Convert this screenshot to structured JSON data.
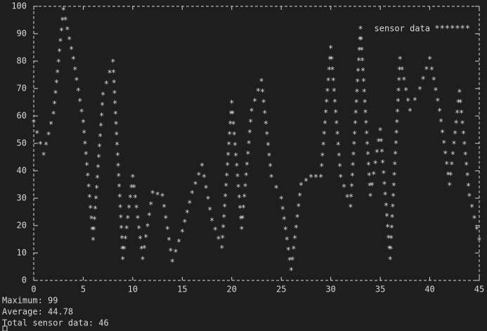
{
  "chart_data": {
    "type": "line",
    "x": [
      0,
      1,
      2,
      3,
      4,
      5,
      6,
      7,
      8,
      9,
      10,
      11,
      12,
      13,
      14,
      15,
      16,
      17,
      18,
      19,
      20,
      21,
      22,
      23,
      24,
      25,
      26,
      27,
      28,
      29,
      30,
      31,
      32,
      33,
      34,
      35,
      36,
      37,
      38,
      39,
      40,
      41,
      42,
      43,
      44,
      45
    ],
    "series": [
      {
        "name": "sensor data",
        "color": "#d8d8d8",
        "values": [
          58,
          46,
          61,
          99,
          81,
          58,
          15,
          68,
          80,
          8,
          38,
          8,
          32,
          31,
          7,
          18,
          32,
          42,
          22,
          12,
          65,
          19,
          62,
          73,
          38,
          30,
          4,
          35,
          38,
          38,
          85,
          38,
          27,
          92,
          31,
          55,
          8,
          81,
          62,
          70,
          81,
          62,
          35,
          69,
          31,
          15
        ]
      }
    ],
    "xlim": [
      0,
      45
    ],
    "xticks": [
      0,
      5,
      10,
      15,
      20,
      25,
      30,
      35,
      40,
      45
    ],
    "ylim": [
      0,
      100
    ],
    "yticks": [
      0,
      10,
      20,
      30,
      40,
      50,
      60,
      70,
      80,
      90,
      100
    ],
    "legend": "upper right",
    "footer": [
      "Maximum: 99",
      "Average: 44.78",
      "Total sensor data: 46"
    ]
  }
}
